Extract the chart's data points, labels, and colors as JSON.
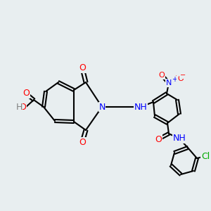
{
  "background_color": "#e8eef0",
  "figsize": [
    3.0,
    3.0
  ],
  "dpi": 100,
  "atoms": {
    "colors": {
      "C": "#000000",
      "N": "#0000ff",
      "O": "#ff0000",
      "H": "#808080",
      "Cl": "#00aa00"
    }
  }
}
